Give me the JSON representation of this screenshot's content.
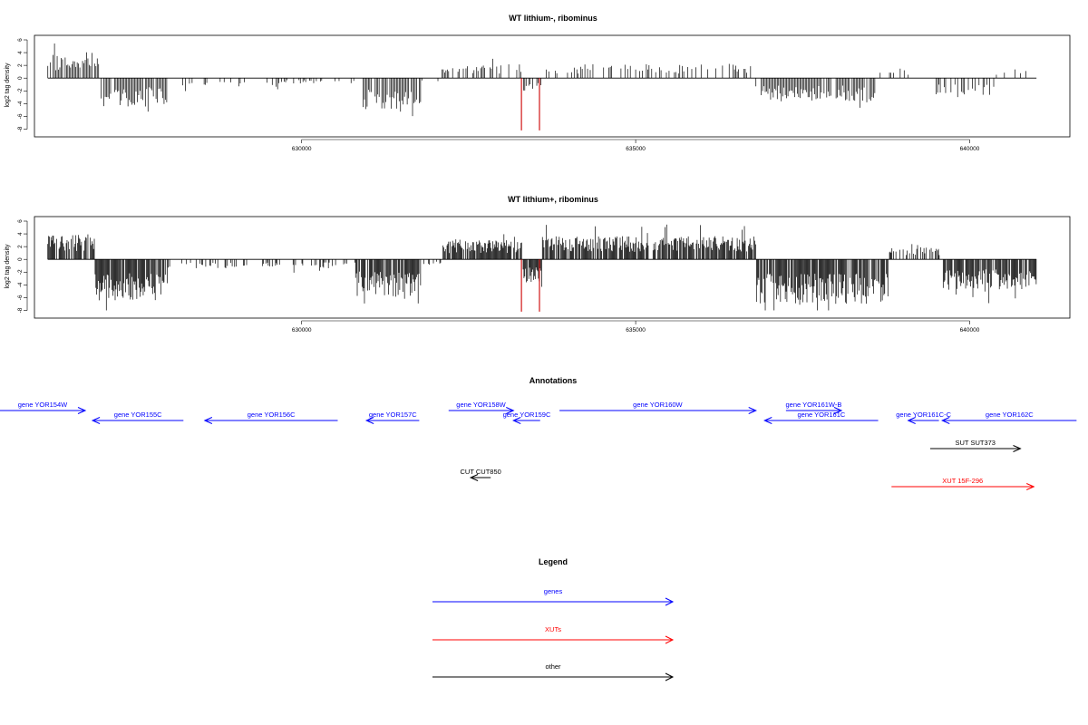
{
  "colors": {
    "genes": "#0000ff",
    "xuts": "#ff0000",
    "other": "#000000",
    "highlight": "#cc0000"
  },
  "chart_data": [
    {
      "type": "bar",
      "title": "WT lithium-, ribominus",
      "ylabel": "log2 tag density",
      "ylim": [
        -8.5,
        6
      ],
      "yticks": [
        6,
        4,
        2,
        0,
        -2,
        -4,
        -6,
        -8
      ],
      "xlim": [
        626000,
        641500
      ],
      "xticks": [
        630000,
        635000,
        640000
      ],
      "xticklabels": [
        "630000",
        "635000",
        "640000"
      ],
      "sampling": {
        "start": 626200,
        "end": 641000,
        "step": 20
      },
      "profile": [
        {
          "from": 626200,
          "to": 627000,
          "level": 2.6
        },
        {
          "from": 627000,
          "to": 628000,
          "level": -3.2
        },
        {
          "from": 628000,
          "to": 629700,
          "level": -1.0
        },
        {
          "from": 629700,
          "to": 630900,
          "level": -0.6
        },
        {
          "from": 630900,
          "to": 631800,
          "level": -3.6
        },
        {
          "from": 631800,
          "to": 632100,
          "level": -0.4
        },
        {
          "from": 632100,
          "to": 633300,
          "level": 1.6
        },
        {
          "from": 633300,
          "to": 633600,
          "level": -1.6
        },
        {
          "from": 633600,
          "to": 636800,
          "level": 1.6
        },
        {
          "from": 636800,
          "to": 638600,
          "level": -2.6
        },
        {
          "from": 638600,
          "to": 639500,
          "level": 1.1
        },
        {
          "from": 639500,
          "to": 640400,
          "level": -1.9
        },
        {
          "from": 640400,
          "to": 641000,
          "level": 1.0
        }
      ],
      "highlights": [
        {
          "x": 633290,
          "value": -8.2
        },
        {
          "x": 633560,
          "value": -8.2
        }
      ]
    },
    {
      "type": "bar",
      "title": "WT lithium+, ribominus",
      "ylabel": "log2 tag density",
      "ylim": [
        -8.5,
        6
      ],
      "yticks": [
        6,
        4,
        2,
        0,
        -2,
        -4,
        -6,
        -8
      ],
      "xlim": [
        626000,
        641500
      ],
      "xticks": [
        630000,
        635000,
        640000
      ],
      "xticklabels": [
        "630000",
        "635000",
        "640000"
      ],
      "sampling": {
        "start": 626200,
        "end": 641000,
        "step": 12
      },
      "profile": [
        {
          "from": 626200,
          "to": 626900,
          "level": 2.8
        },
        {
          "from": 626900,
          "to": 628000,
          "level": -4.6
        },
        {
          "from": 628000,
          "to": 630000,
          "level": -1.0
        },
        {
          "from": 630000,
          "to": 630800,
          "level": -1.0
        },
        {
          "from": 630800,
          "to": 631800,
          "level": -4.2
        },
        {
          "from": 631800,
          "to": 632100,
          "level": -0.6
        },
        {
          "from": 632100,
          "to": 633300,
          "level": 2.2
        },
        {
          "from": 633300,
          "to": 633600,
          "level": -2.6
        },
        {
          "from": 633600,
          "to": 636800,
          "level": 2.6
        },
        {
          "from": 636800,
          "to": 638800,
          "level": -5.0
        },
        {
          "from": 638800,
          "to": 639600,
          "level": 1.4
        },
        {
          "from": 639600,
          "to": 641000,
          "level": -3.4
        }
      ],
      "highlights": [
        {
          "x": 633290,
          "value": -8.2
        },
        {
          "x": 633560,
          "value": -8.2
        }
      ]
    }
  ],
  "annotations": {
    "title": "Annotations",
    "features": [
      {
        "label": "gene YOR154W",
        "start": 625380,
        "end": 626760,
        "strand": "+",
        "row": 0,
        "kind": "genes"
      },
      {
        "label": "gene YOR155C",
        "start": 626870,
        "end": 628230,
        "strand": "-",
        "row": 1,
        "kind": "genes"
      },
      {
        "label": "gene YOR156C",
        "start": 628550,
        "end": 630540,
        "strand": "-",
        "row": 1,
        "kind": "genes"
      },
      {
        "label": "gene YOR157C",
        "start": 630970,
        "end": 631760,
        "strand": "-",
        "row": 1,
        "kind": "genes"
      },
      {
        "label": "gene YOR158W",
        "start": 632200,
        "end": 633170,
        "strand": "+",
        "row": 0,
        "kind": "genes"
      },
      {
        "label": "gene YOR159C",
        "start": 633170,
        "end": 633570,
        "strand": "-",
        "row": 1,
        "kind": "genes"
      },
      {
        "label": "gene YOR160W",
        "start": 633860,
        "end": 636800,
        "strand": "+",
        "row": 0,
        "kind": "genes"
      },
      {
        "label": "gene YOR161W-B",
        "start": 637250,
        "end": 638080,
        "strand": "+",
        "row": 0,
        "kind": "genes"
      },
      {
        "label": "gene YOR161C",
        "start": 636930,
        "end": 638630,
        "strand": "-",
        "row": 1,
        "kind": "genes"
      },
      {
        "label": "gene YOR161C-C",
        "start": 639080,
        "end": 639540,
        "strand": "-",
        "row": 1,
        "kind": "genes"
      },
      {
        "label": "gene YOR162C",
        "start": 639590,
        "end": 641600,
        "strand": "-",
        "row": 1,
        "kind": "genes"
      },
      {
        "label": "SUT SUT373",
        "start": 639410,
        "end": 640760,
        "strand": "+",
        "row": 3,
        "kind": "other"
      },
      {
        "label": "CUT CUT850",
        "start": 632530,
        "end": 632830,
        "strand": "-",
        "row": 5,
        "kind": "other"
      },
      {
        "label": "XUT 15F-296",
        "start": 638830,
        "end": 640960,
        "strand": "+",
        "row": 6,
        "kind": "xuts"
      }
    ]
  },
  "legend": {
    "title": "Legend",
    "items": [
      {
        "label": "genes",
        "kind": "genes"
      },
      {
        "label": "XUTs",
        "kind": "xuts"
      },
      {
        "label": "other",
        "kind": "other"
      }
    ]
  }
}
